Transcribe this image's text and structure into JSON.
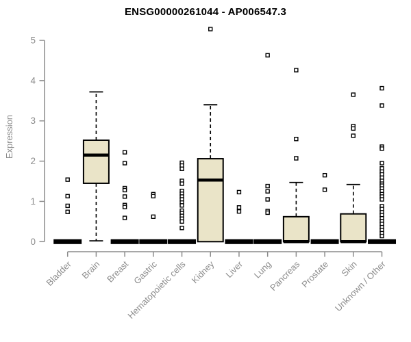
{
  "chart_data": {
    "type": "boxplot",
    "title": "ENSG00000261044 - AP006547.3",
    "xlabel": "",
    "ylabel": "Expression",
    "ylim": [
      0,
      5
    ],
    "yticks": [
      0,
      1,
      2,
      3,
      4,
      5
    ],
    "grid": false,
    "legend": "none",
    "box_fill_color": "#EAE4C8",
    "box_border_color": "#000000",
    "axis_color": "#8C8C8C",
    "outlier_marker": "open-square",
    "categories": [
      "Bladder",
      "Brain",
      "Breast",
      "Gastric",
      "Hematopoietic cells",
      "Kidney",
      "Liver",
      "Lung",
      "Pancreas",
      "Prostate",
      "Skin",
      "Unknown / Other"
    ],
    "boxes": [
      {
        "category": "Bladder",
        "low": 0,
        "q1": 0,
        "median": 0,
        "q3": 0,
        "high": 0,
        "outliers": [
          1.54,
          1.13,
          0.89,
          0.74
        ]
      },
      {
        "category": "Brain",
        "low": 0.02,
        "q1": 1.45,
        "median": 2.15,
        "q3": 2.52,
        "high": 3.72,
        "outliers": []
      },
      {
        "category": "Breast",
        "low": 0,
        "q1": 0,
        "median": 0,
        "q3": 0,
        "high": 0,
        "outliers": [
          2.22,
          1.95,
          1.33,
          1.28,
          1.12,
          0.91,
          0.86,
          0.59
        ]
      },
      {
        "category": "Gastric",
        "low": 0,
        "q1": 0,
        "median": 0,
        "q3": 0,
        "high": 0,
        "outliers": [
          1.18,
          1.13,
          0.62
        ]
      },
      {
        "category": "Hematopoietic cells",
        "low": 0,
        "q1": 0,
        "median": 0,
        "q3": 0,
        "high": 0,
        "outliers": [
          1.96,
          1.89,
          1.81,
          1.51,
          1.44,
          1.26,
          1.19,
          1.12,
          1.05,
          0.97,
          0.9,
          0.77,
          0.71,
          0.64,
          0.57,
          0.5,
          0.34
        ]
      },
      {
        "category": "Kidney",
        "low": 0,
        "q1": 0,
        "median": 1.53,
        "q3": 2.06,
        "high": 3.4,
        "outliers": [
          5.28
        ]
      },
      {
        "category": "Liver",
        "low": 0,
        "q1": 0,
        "median": 0,
        "q3": 0,
        "high": 0,
        "outliers": [
          1.23,
          0.85,
          0.75
        ]
      },
      {
        "category": "Lung",
        "low": 0,
        "q1": 0,
        "median": 0,
        "q3": 0,
        "high": 0,
        "outliers": [
          4.63,
          1.38,
          1.25,
          1.05,
          0.76,
          0.72
        ]
      },
      {
        "category": "Pancreas",
        "low": 0,
        "q1": 0,
        "median": 0,
        "q3": 0.62,
        "high": 1.47,
        "outliers": [
          4.26,
          2.55,
          2.07
        ]
      },
      {
        "category": "Prostate",
        "low": 0,
        "q1": 0,
        "median": 0,
        "q3": 0,
        "high": 0,
        "outliers": [
          1.65,
          1.29
        ]
      },
      {
        "category": "Skin",
        "low": 0,
        "q1": 0,
        "median": 0,
        "q3": 0.69,
        "high": 1.42,
        "outliers": [
          3.65,
          2.87,
          2.81,
          2.63
        ]
      },
      {
        "category": "Unknown / Other",
        "low": 0,
        "q1": 0,
        "median": 0,
        "q3": 0,
        "high": 0,
        "outliers": [
          3.81,
          3.38,
          2.36,
          2.31,
          1.95,
          1.82,
          1.74,
          1.67,
          1.59,
          1.51,
          1.44,
          1.39,
          1.32,
          1.25,
          1.18,
          1.12,
          1.05,
          0.88,
          0.81,
          0.73,
          0.66,
          0.58,
          0.51,
          0.44,
          0.36,
          0.29,
          0.21,
          0.14
        ]
      }
    ]
  }
}
